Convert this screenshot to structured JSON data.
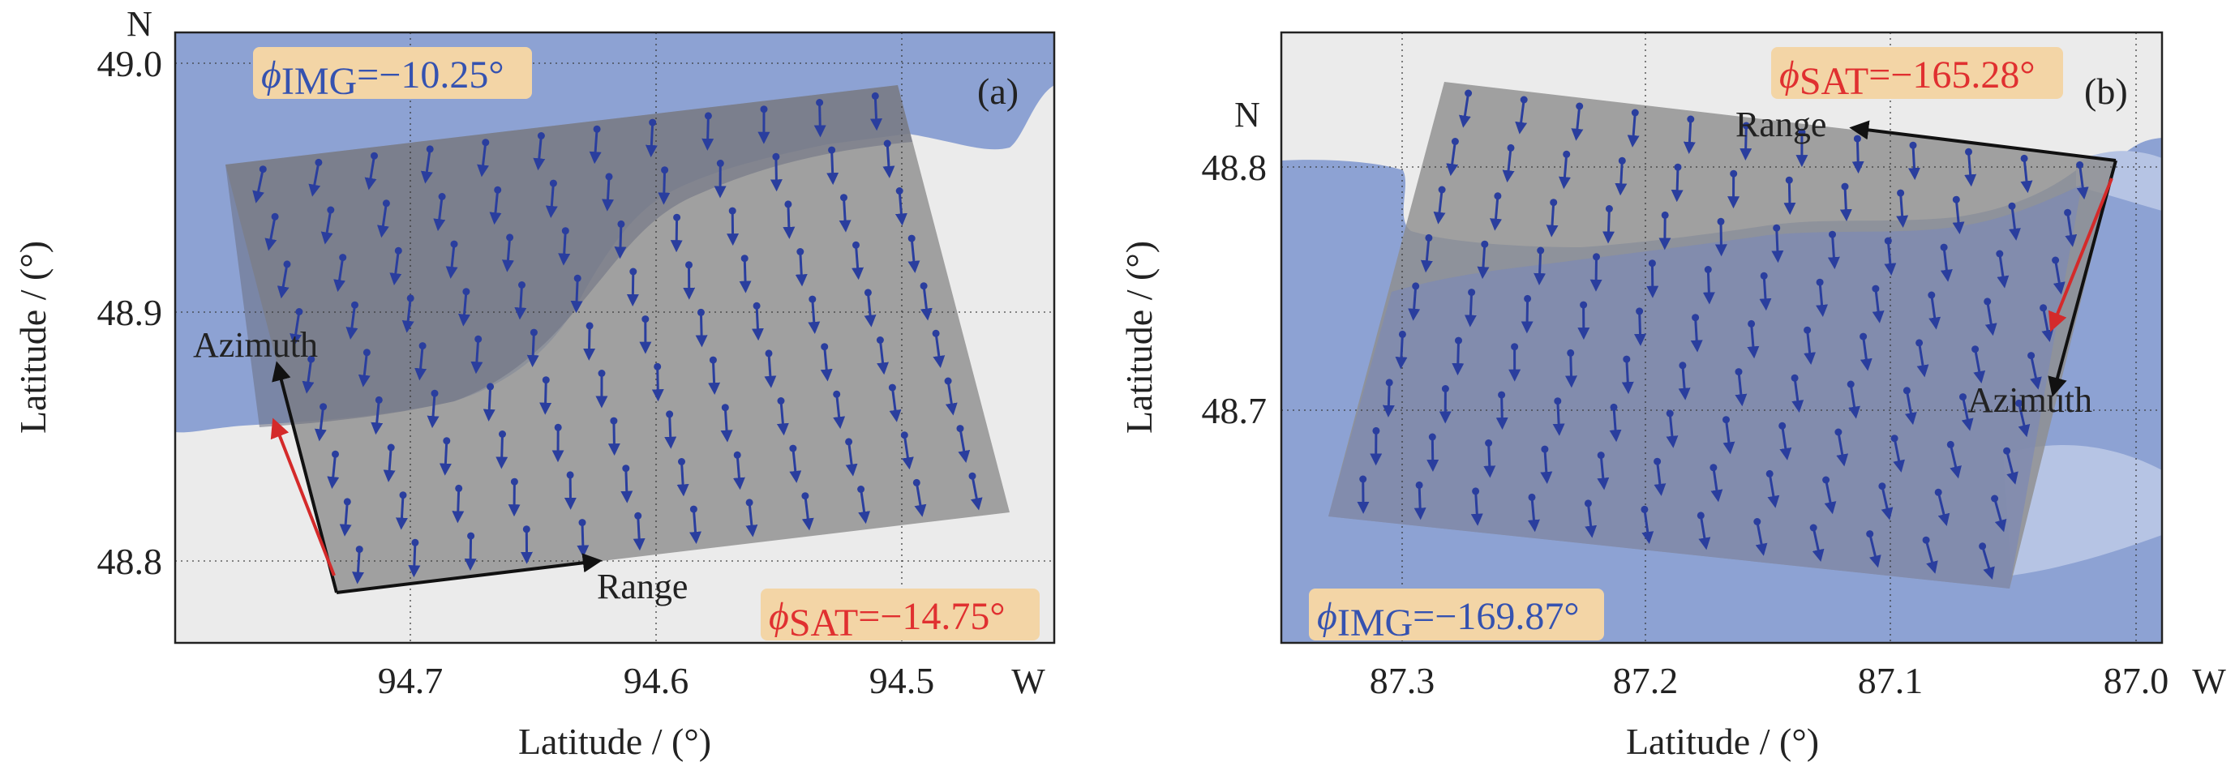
{
  "colors": {
    "water": "#8da2d3",
    "land": "#ebebeb",
    "paleWater": "#b6c4e4",
    "vector": "#2a3e9e",
    "satArrow": "#d42a2a",
    "axisArrow": "#111111",
    "badge": "#f3d5a6",
    "imgGray": "#8e8e8e"
  },
  "panels": [
    {
      "id": "a",
      "tag": "(a)",
      "ylabel": "Latitude / (°)",
      "xlabel": "Latitude / (°)",
      "north": "N",
      "west": "W",
      "yticks": [
        "49.0",
        "48.9",
        "48.8"
      ],
      "xticks": [
        "94.7",
        "94.6",
        "94.5"
      ],
      "azimuth_label": "Azimuth",
      "range_label": "Range",
      "phi_img": {
        "symbol": "ϕ",
        "sub": "IMG",
        "value": "=−10.25°"
      },
      "phi_sat": {
        "symbol": "ϕ",
        "sub": "SAT",
        "value": "=−14.75°"
      }
    },
    {
      "id": "b",
      "tag": "(b)",
      "ylabel": "Latitude / (°)",
      "xlabel": "Latitude / (°)",
      "north": "N",
      "west": "W",
      "yticks": [
        "48.8",
        "48.7"
      ],
      "xticks": [
        "87.3",
        "87.2",
        "87.1",
        "87.0"
      ],
      "azimuth_label": "Azimuth",
      "range_label": "Range",
      "phi_img": {
        "symbol": "ϕ",
        "sub": "IMG",
        "value": "=−169.87°"
      },
      "phi_sat": {
        "symbol": "ϕ",
        "sub": "SAT",
        "value": "=−165.28°"
      }
    }
  ],
  "vector_fields": [
    {
      "panel": "a",
      "cols": 12,
      "rows": 9,
      "angle_start_deg": -103,
      "angle_end_deg": -78
    },
    {
      "panel": "b",
      "cols": 12,
      "rows": 9,
      "angle_start_deg": -100,
      "angle_end_deg": -72
    }
  ]
}
